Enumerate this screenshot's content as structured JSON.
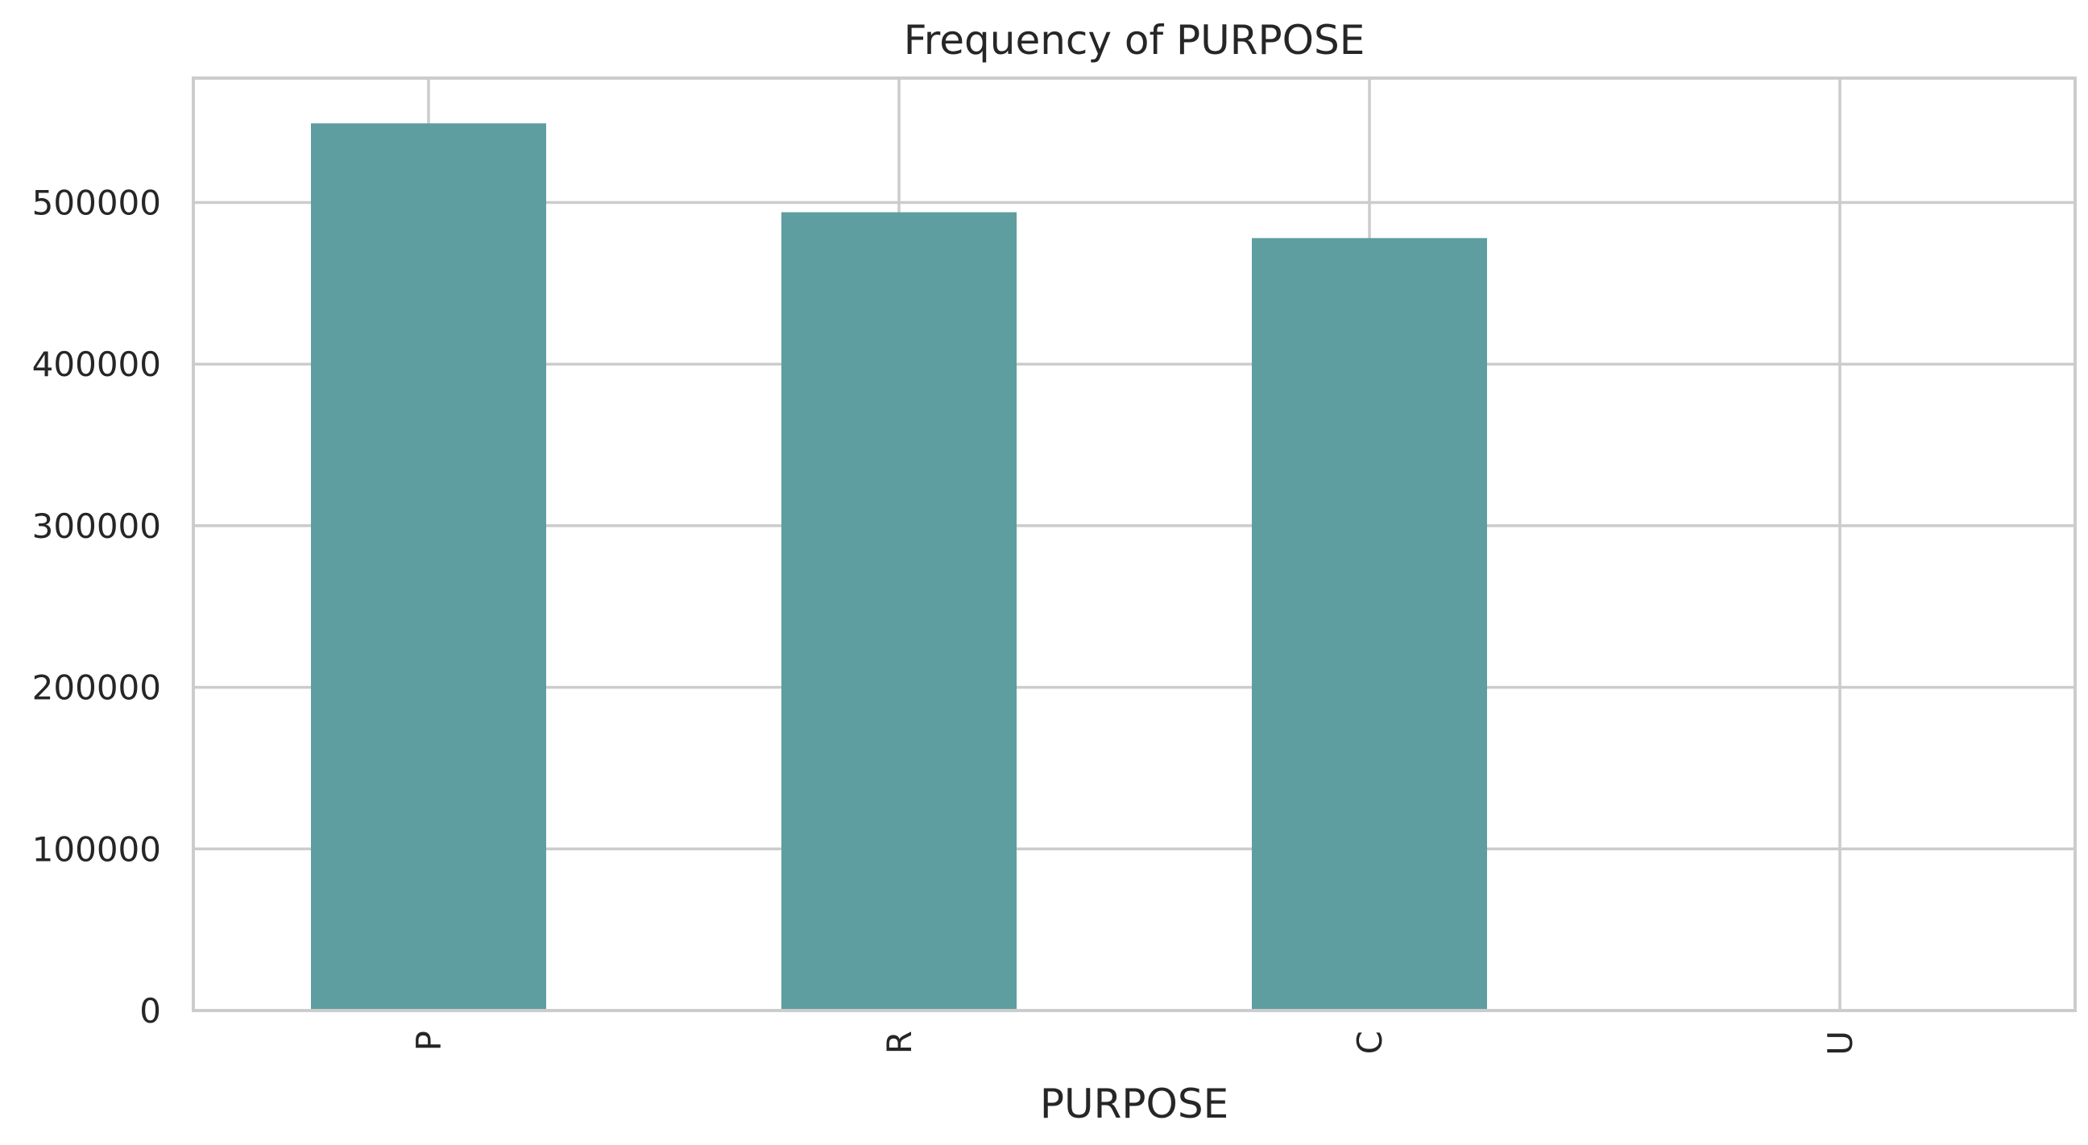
{
  "chart_data": {
    "type": "bar",
    "title": "Frequency of PURPOSE",
    "xlabel": "PURPOSE",
    "ylabel": "",
    "categories": [
      "P",
      "R",
      "C",
      "U"
    ],
    "values": [
      549000,
      494000,
      478000,
      0
    ],
    "ylim": [
      0,
      577000
    ],
    "yticks": [
      0,
      100000,
      200000,
      300000,
      400000,
      500000
    ],
    "ytick_labels": [
      "0",
      "100000",
      "200000",
      "300000",
      "400000",
      "500000"
    ],
    "bar_color": "#5f9ea0",
    "grid": true,
    "x_tick_rotation": "vertical"
  }
}
